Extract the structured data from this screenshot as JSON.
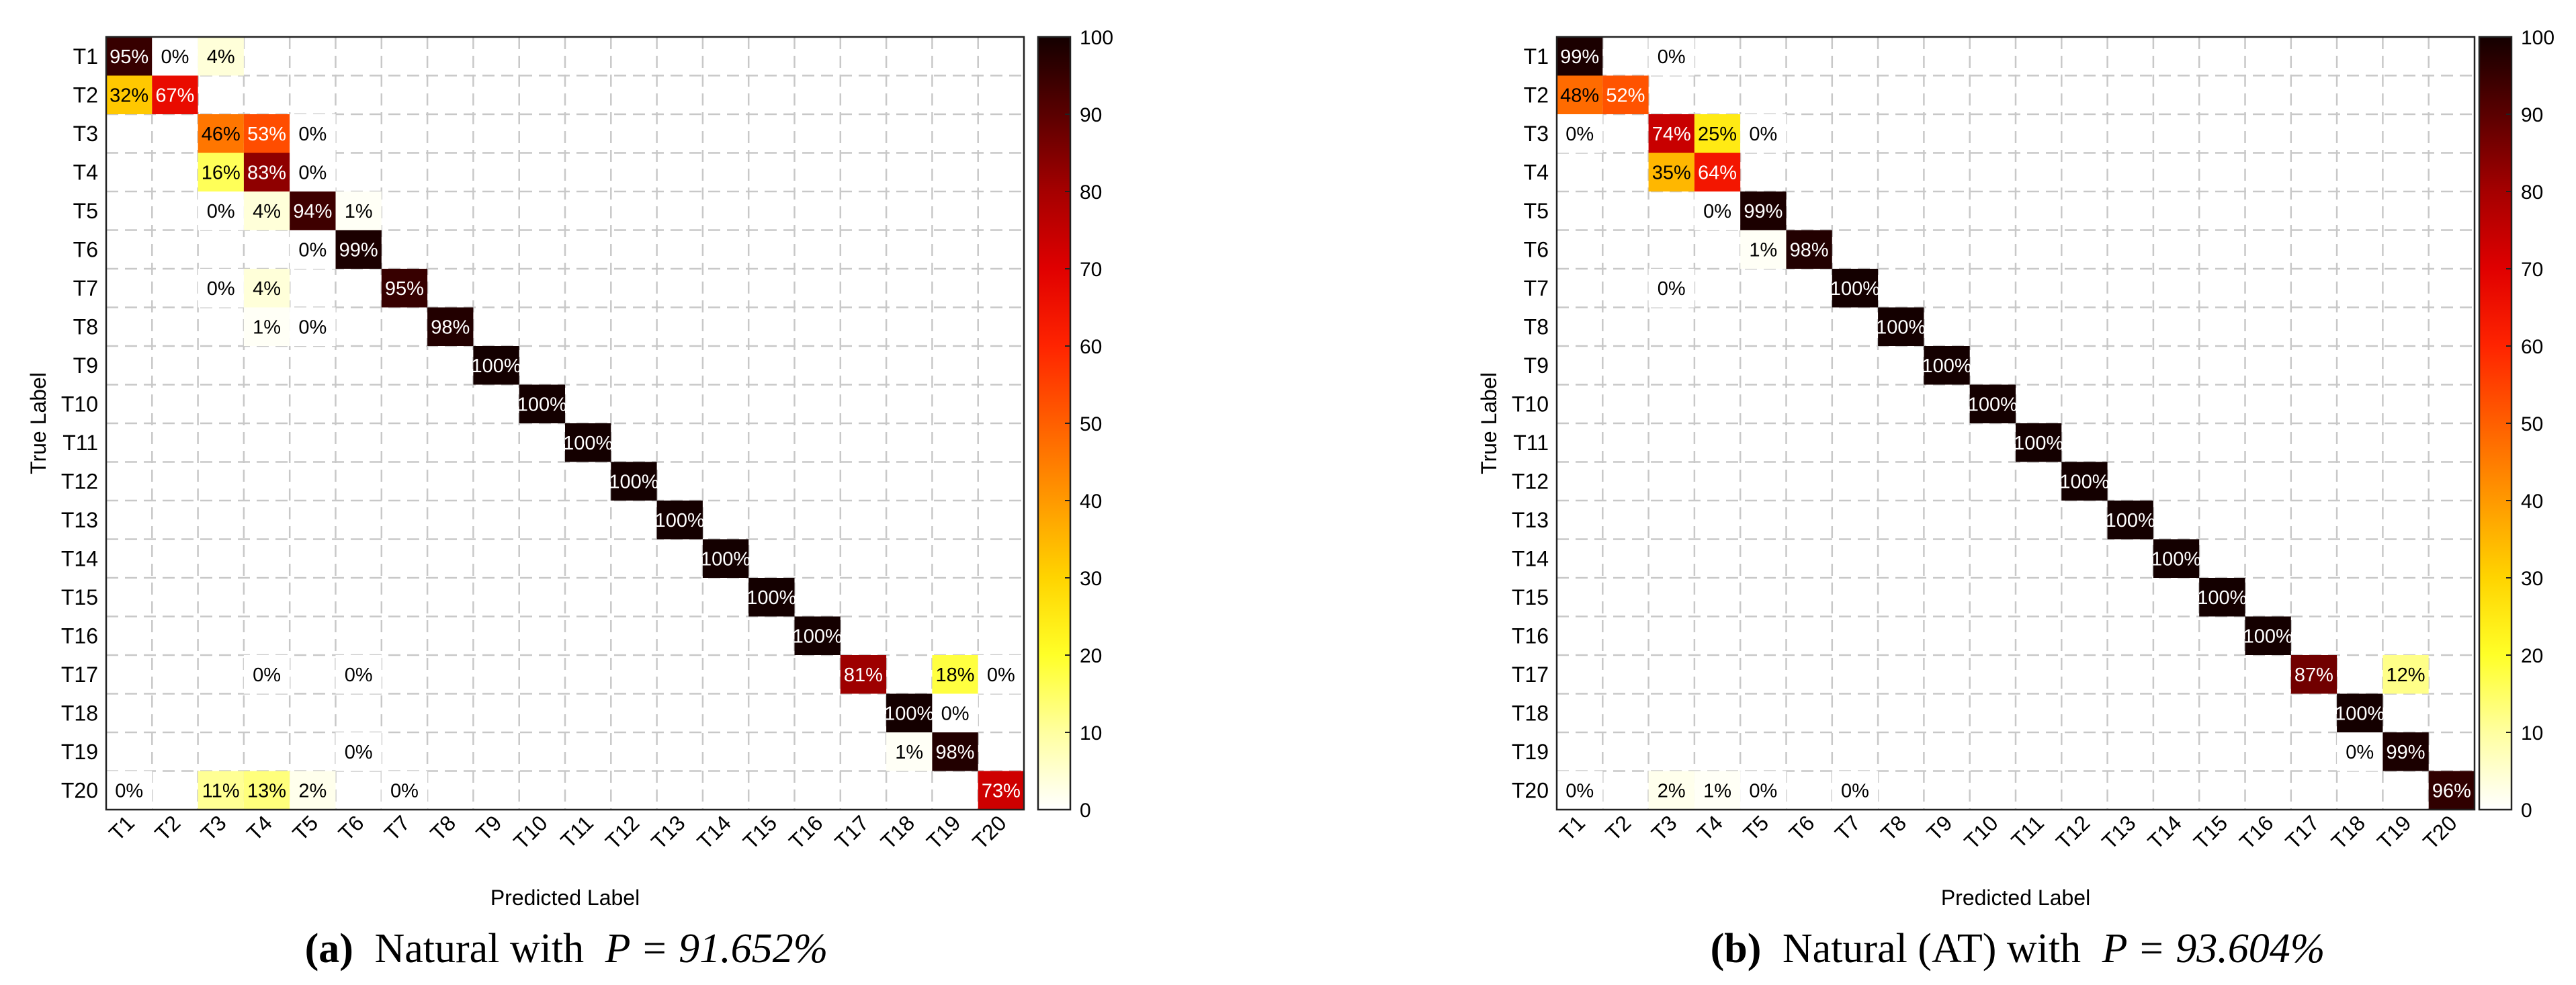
{
  "chart_data": [
    {
      "type": "heatmap",
      "caption_letter": "(a)",
      "caption_text": "Natural with",
      "caption_math": "P = 91.652%",
      "xlabel": "Predicted Label",
      "ylabel": "True Label",
      "categories": [
        "T1",
        "T2",
        "T3",
        "T4",
        "T5",
        "T6",
        "T7",
        "T8",
        "T9",
        "T10",
        "T11",
        "T12",
        "T13",
        "T14",
        "T15",
        "T16",
        "T17",
        "T18",
        "T19",
        "T20"
      ],
      "colorbar": {
        "min": 0,
        "max": 100,
        "ticks": [
          "0",
          "10",
          "20",
          "30",
          "40",
          "50",
          "60",
          "70",
          "80",
          "90",
          "100"
        ]
      },
      "cells": [
        {
          "row": "T1",
          "col": "T1",
          "value": 95,
          "label": "95%"
        },
        {
          "row": "T1",
          "col": "T2",
          "value": 0,
          "label": "0%"
        },
        {
          "row": "T1",
          "col": "T3",
          "value": 4,
          "label": "4%"
        },
        {
          "row": "T2",
          "col": "T1",
          "value": 32,
          "label": "32%"
        },
        {
          "row": "T2",
          "col": "T2",
          "value": 67,
          "label": "67%"
        },
        {
          "row": "T3",
          "col": "T3",
          "value": 46,
          "label": "46%"
        },
        {
          "row": "T3",
          "col": "T4",
          "value": 53,
          "label": "53%"
        },
        {
          "row": "T3",
          "col": "T5",
          "value": 0,
          "label": "0%"
        },
        {
          "row": "T4",
          "col": "T3",
          "value": 16,
          "label": "16%"
        },
        {
          "row": "T4",
          "col": "T4",
          "value": 83,
          "label": "83%"
        },
        {
          "row": "T4",
          "col": "T5",
          "value": 0,
          "label": "0%"
        },
        {
          "row": "T5",
          "col": "T3",
          "value": 0,
          "label": "0%"
        },
        {
          "row": "T5",
          "col": "T4",
          "value": 4,
          "label": "4%"
        },
        {
          "row": "T5",
          "col": "T5",
          "value": 94,
          "label": "94%"
        },
        {
          "row": "T5",
          "col": "T6",
          "value": 1,
          "label": "1%"
        },
        {
          "row": "T6",
          "col": "T5",
          "value": 0,
          "label": "0%"
        },
        {
          "row": "T6",
          "col": "T6",
          "value": 99,
          "label": "99%"
        },
        {
          "row": "T7",
          "col": "T3",
          "value": 0,
          "label": "0%"
        },
        {
          "row": "T7",
          "col": "T4",
          "value": 4,
          "label": "4%"
        },
        {
          "row": "T7",
          "col": "T7",
          "value": 95,
          "label": "95%"
        },
        {
          "row": "T8",
          "col": "T4",
          "value": 1,
          "label": "1%"
        },
        {
          "row": "T8",
          "col": "T5",
          "value": 0,
          "label": "0%"
        },
        {
          "row": "T8",
          "col": "T8",
          "value": 98,
          "label": "98%"
        },
        {
          "row": "T9",
          "col": "T9",
          "value": 100,
          "label": "100%"
        },
        {
          "row": "T10",
          "col": "T10",
          "value": 100,
          "label": "100%"
        },
        {
          "row": "T11",
          "col": "T11",
          "value": 100,
          "label": "100%"
        },
        {
          "row": "T12",
          "col": "T12",
          "value": 100,
          "label": "100%"
        },
        {
          "row": "T13",
          "col": "T13",
          "value": 100,
          "label": "100%"
        },
        {
          "row": "T14",
          "col": "T14",
          "value": 100,
          "label": "100%"
        },
        {
          "row": "T15",
          "col": "T15",
          "value": 100,
          "label": "100%"
        },
        {
          "row": "T16",
          "col": "T16",
          "value": 100,
          "label": "100%"
        },
        {
          "row": "T17",
          "col": "T4",
          "value": 0,
          "label": "0%"
        },
        {
          "row": "T17",
          "col": "T6",
          "value": 0,
          "label": "0%"
        },
        {
          "row": "T17",
          "col": "T17",
          "value": 81,
          "label": "81%"
        },
        {
          "row": "T17",
          "col": "T19",
          "value": 18,
          "label": "18%"
        },
        {
          "row": "T17",
          "col": "T20",
          "value": 0,
          "label": "0%"
        },
        {
          "row": "T18",
          "col": "T18",
          "value": 100,
          "label": "100%"
        },
        {
          "row": "T18",
          "col": "T19",
          "value": 0,
          "label": "0%"
        },
        {
          "row": "T19",
          "col": "T6",
          "value": 0,
          "label": "0%"
        },
        {
          "row": "T19",
          "col": "T18",
          "value": 1,
          "label": "1%"
        },
        {
          "row": "T19",
          "col": "T19",
          "value": 98,
          "label": "98%"
        },
        {
          "row": "T20",
          "col": "T1",
          "value": 0,
          "label": "0%"
        },
        {
          "row": "T20",
          "col": "T3",
          "value": 11,
          "label": "11%"
        },
        {
          "row": "T20",
          "col": "T4",
          "value": 13,
          "label": "13%"
        },
        {
          "row": "T20",
          "col": "T5",
          "value": 2,
          "label": "2%"
        },
        {
          "row": "T20",
          "col": "T7",
          "value": 0,
          "label": "0%"
        },
        {
          "row": "T20",
          "col": "T20",
          "value": 73,
          "label": "73%"
        }
      ]
    },
    {
      "type": "heatmap",
      "caption_letter": "(b)",
      "caption_text": "Natural (AT) with",
      "caption_math": "P = 93.604%",
      "xlabel": "Predicted Label",
      "ylabel": "True Label",
      "categories": [
        "T1",
        "T2",
        "T3",
        "T4",
        "T5",
        "T6",
        "T7",
        "T8",
        "T9",
        "T10",
        "T11",
        "T12",
        "T13",
        "T14",
        "T15",
        "T16",
        "T17",
        "T18",
        "T19",
        "T20"
      ],
      "colorbar": {
        "min": 0,
        "max": 100,
        "ticks": [
          "0",
          "10",
          "20",
          "30",
          "40",
          "50",
          "60",
          "70",
          "80",
          "90",
          "100"
        ]
      },
      "cells": [
        {
          "row": "T1",
          "col": "T1",
          "value": 99,
          "label": "99%"
        },
        {
          "row": "T1",
          "col": "T3",
          "value": 0,
          "label": "0%"
        },
        {
          "row": "T2",
          "col": "T1",
          "value": 48,
          "label": "48%"
        },
        {
          "row": "T2",
          "col": "T2",
          "value": 52,
          "label": "52%"
        },
        {
          "row": "T3",
          "col": "T1",
          "value": 0,
          "label": "0%"
        },
        {
          "row": "T3",
          "col": "T3",
          "value": 74,
          "label": "74%"
        },
        {
          "row": "T3",
          "col": "T4",
          "value": 25,
          "label": "25%"
        },
        {
          "row": "T3",
          "col": "T5",
          "value": 0,
          "label": "0%"
        },
        {
          "row": "T4",
          "col": "T3",
          "value": 35,
          "label": "35%"
        },
        {
          "row": "T4",
          "col": "T4",
          "value": 64,
          "label": "64%"
        },
        {
          "row": "T5",
          "col": "T4",
          "value": 0,
          "label": "0%"
        },
        {
          "row": "T5",
          "col": "T5",
          "value": 99,
          "label": "99%"
        },
        {
          "row": "T6",
          "col": "T5",
          "value": 1,
          "label": "1%"
        },
        {
          "row": "T6",
          "col": "T6",
          "value": 98,
          "label": "98%"
        },
        {
          "row": "T7",
          "col": "T3",
          "value": 0,
          "label": "0%"
        },
        {
          "row": "T7",
          "col": "T7",
          "value": 100,
          "label": "100%"
        },
        {
          "row": "T8",
          "col": "T8",
          "value": 100,
          "label": "100%"
        },
        {
          "row": "T9",
          "col": "T9",
          "value": 100,
          "label": "100%"
        },
        {
          "row": "T10",
          "col": "T10",
          "value": 100,
          "label": "100%"
        },
        {
          "row": "T11",
          "col": "T11",
          "value": 100,
          "label": "100%"
        },
        {
          "row": "T12",
          "col": "T12",
          "value": 100,
          "label": "100%"
        },
        {
          "row": "T13",
          "col": "T13",
          "value": 100,
          "label": "100%"
        },
        {
          "row": "T14",
          "col": "T14",
          "value": 100,
          "label": "100%"
        },
        {
          "row": "T15",
          "col": "T15",
          "value": 100,
          "label": "100%"
        },
        {
          "row": "T16",
          "col": "T16",
          "value": 100,
          "label": "100%"
        },
        {
          "row": "T17",
          "col": "T17",
          "value": 87,
          "label": "87%"
        },
        {
          "row": "T17",
          "col": "T19",
          "value": 12,
          "label": "12%"
        },
        {
          "row": "T18",
          "col": "T18",
          "value": 100,
          "label": "100%"
        },
        {
          "row": "T19",
          "col": "T18",
          "value": 0,
          "label": "0%"
        },
        {
          "row": "T19",
          "col": "T19",
          "value": 99,
          "label": "99%"
        },
        {
          "row": "T20",
          "col": "T1",
          "value": 0,
          "label": "0%"
        },
        {
          "row": "T20",
          "col": "T3",
          "value": 2,
          "label": "2%"
        },
        {
          "row": "T20",
          "col": "T4",
          "value": 1,
          "label": "1%"
        },
        {
          "row": "T20",
          "col": "T5",
          "value": 0,
          "label": "0%"
        },
        {
          "row": "T20",
          "col": "T7",
          "value": 0,
          "label": "0%"
        },
        {
          "row": "T20",
          "col": "T20",
          "value": 96,
          "label": "96%"
        }
      ]
    }
  ]
}
